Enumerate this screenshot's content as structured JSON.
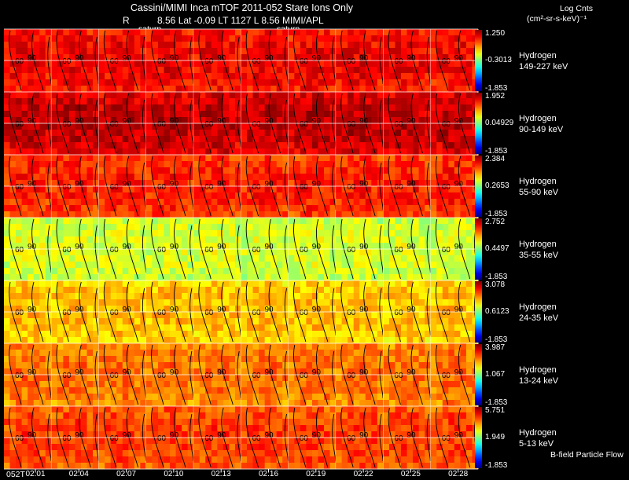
{
  "header": {
    "title": "Cassini/MIMI Inca mTOF  2011-052    Stare    Ions Only",
    "subtitle_left": "R",
    "subtitle_right": "8.56 Lat -0.09 LT 1127 L        8.56  MIMI/APL",
    "overlay_label_1": "saturn",
    "overlay_label_2": "saturn",
    "legend_title": "Log Cnts",
    "legend_units": "(cm²-sr-s-keV)⁻¹"
  },
  "footer": {
    "note": "B-field Particle Flow"
  },
  "colors": {
    "background": "#000000",
    "gridline": "#ffffff",
    "contour": "#000000"
  },
  "chart_data": {
    "type": "heatmap",
    "title": "Cassini/MIMI Inca mTOF 2011-052 Stare Ions Only",
    "x_ticks": [
      "02:01",
      "02:04",
      "02:07",
      "02:10",
      "02:13",
      "02:16",
      "02:19",
      "02:22",
      "02:25",
      "02:28"
    ],
    "x_tick_prefix": "052T",
    "contour_labels": [
      "60",
      "90"
    ],
    "bands": [
      {
        "species": "Hydrogen",
        "energy": "149-227 keV",
        "max": "1.250",
        "mid": "-0.3013",
        "min": "-1.853",
        "level": 0.9
      },
      {
        "species": "Hydrogen",
        "energy": "90-149 keV",
        "max": "1.952",
        "mid": "0.04929",
        "min": "-1.853",
        "level": 0.95
      },
      {
        "species": "Hydrogen",
        "energy": "55-90 keV",
        "max": "2.384",
        "mid": "0.2653",
        "min": "-1.853",
        "level": 0.86
      },
      {
        "species": "Hydrogen",
        "energy": "35-55 keV",
        "max": "2.752",
        "mid": "0.4497",
        "min": "-1.853",
        "level": 0.6
      },
      {
        "species": "Hydrogen",
        "energy": "24-35 keV",
        "max": "3.078",
        "mid": "0.6123",
        "min": "-1.853",
        "level": 0.7
      },
      {
        "species": "Hydrogen",
        "energy": "13-24 keV",
        "max": "3.987",
        "mid": "1.067",
        "min": "-1.853",
        "level": 0.78
      },
      {
        "species": "Hydrogen",
        "energy": "5-13 keV",
        "max": "5.751",
        "mid": "1.949",
        "min": "-1.853",
        "level": 0.83
      }
    ]
  }
}
